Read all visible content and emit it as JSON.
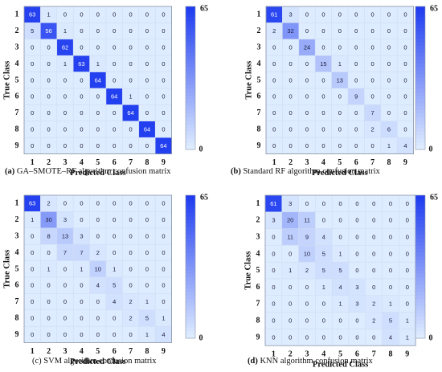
{
  "colors": {
    "min": "#deecff",
    "max": "#1f3cf0",
    "text_dark": "#1a1a3a",
    "text_light": "#ffffff"
  },
  "chart_data": [
    {
      "type": "heatmap",
      "panel_label": "(a)",
      "caption": "GA–SMOTE–RF algorithm confusion matrix",
      "xlabel": "Predicted Class",
      "ylabel": "True Class",
      "categories": [
        "1",
        "2",
        "3",
        "4",
        "5",
        "6",
        "7",
        "8",
        "9"
      ],
      "colorbar_ticks": [
        "0",
        "65"
      ],
      "vmin": 0,
      "vmax": 65,
      "values": [
        [
          63,
          1,
          0,
          0,
          0,
          0,
          0,
          0,
          0
        ],
        [
          5,
          56,
          1,
          0,
          0,
          0,
          0,
          0,
          0
        ],
        [
          0,
          0,
          62,
          0,
          0,
          0,
          0,
          0,
          0
        ],
        [
          0,
          0,
          1,
          63,
          1,
          0,
          0,
          0,
          0
        ],
        [
          0,
          0,
          0,
          0,
          64,
          0,
          0,
          0,
          0
        ],
        [
          0,
          0,
          0,
          0,
          0,
          64,
          1,
          0,
          0
        ],
        [
          0,
          0,
          0,
          0,
          0,
          0,
          64,
          0,
          0
        ],
        [
          0,
          0,
          0,
          0,
          0,
          0,
          0,
          64,
          0
        ],
        [
          0,
          0,
          0,
          0,
          0,
          0,
          0,
          0,
          64
        ]
      ]
    },
    {
      "type": "heatmap",
      "panel_label": "(b)",
      "caption": "Standard RF algorithm confusion matrix",
      "xlabel": "Predicted Class",
      "ylabel": "True Class",
      "categories": [
        "1",
        "2",
        "3",
        "4",
        "5",
        "6",
        "7",
        "8",
        "9"
      ],
      "colorbar_ticks": [
        "0",
        "65"
      ],
      "vmin": 0,
      "vmax": 65,
      "values": [
        [
          61,
          3,
          0,
          0,
          0,
          0,
          0,
          0,
          0
        ],
        [
          2,
          32,
          0,
          0,
          0,
          0,
          0,
          0,
          0
        ],
        [
          0,
          0,
          24,
          0,
          0,
          0,
          0,
          0,
          0
        ],
        [
          0,
          0,
          0,
          15,
          1,
          0,
          0,
          0,
          0
        ],
        [
          0,
          0,
          0,
          0,
          13,
          0,
          0,
          0,
          0
        ],
        [
          0,
          0,
          0,
          0,
          0,
          9,
          0,
          0,
          0
        ],
        [
          0,
          0,
          0,
          0,
          0,
          0,
          7,
          0,
          0
        ],
        [
          0,
          0,
          0,
          0,
          0,
          0,
          2,
          6,
          0
        ],
        [
          0,
          0,
          0,
          0,
          0,
          0,
          0,
          1,
          4
        ]
      ]
    },
    {
      "type": "heatmap",
      "panel_label": "(c)",
      "caption": "SVM algorithm confusion matrix",
      "xlabel": "Predicted Class",
      "ylabel": "True Class",
      "categories": [
        "1",
        "2",
        "3",
        "4",
        "5",
        "6",
        "7",
        "8",
        "9"
      ],
      "colorbar_ticks": [
        "0",
        "65"
      ],
      "vmin": 0,
      "vmax": 65,
      "values": [
        [
          63,
          2,
          0,
          0,
          0,
          0,
          0,
          0,
          0
        ],
        [
          1,
          30,
          3,
          0,
          0,
          0,
          0,
          0,
          0
        ],
        [
          0,
          8,
          13,
          3,
          0,
          0,
          0,
          0,
          0
        ],
        [
          0,
          0,
          7,
          7,
          2,
          0,
          0,
          0,
          0
        ],
        [
          0,
          1,
          0,
          1,
          10,
          1,
          0,
          0,
          0
        ],
        [
          0,
          0,
          0,
          0,
          4,
          5,
          0,
          0,
          0
        ],
        [
          0,
          0,
          0,
          0,
          0,
          4,
          2,
          1,
          0
        ],
        [
          0,
          0,
          0,
          0,
          0,
          0,
          2,
          5,
          1
        ],
        [
          0,
          0,
          0,
          0,
          0,
          0,
          0,
          1,
          4
        ]
      ]
    },
    {
      "type": "heatmap",
      "panel_label": "(d)",
      "caption": "KNN algorithm confusion matrix",
      "xlabel": "Predicted Class",
      "ylabel": "True Class",
      "categories": [
        "1",
        "2",
        "3",
        "4",
        "5",
        "6",
        "7",
        "8",
        "9"
      ],
      "colorbar_ticks": [
        "0",
        "65"
      ],
      "vmin": 0,
      "vmax": 65,
      "values": [
        [
          61,
          3,
          0,
          0,
          0,
          0,
          0,
          0,
          0
        ],
        [
          3,
          20,
          11,
          0,
          0,
          0,
          0,
          0,
          0
        ],
        [
          0,
          11,
          9,
          4,
          0,
          0,
          0,
          0,
          0
        ],
        [
          0,
          0,
          10,
          5,
          1,
          0,
          0,
          0,
          0
        ],
        [
          0,
          1,
          2,
          5,
          5,
          0,
          0,
          0,
          0
        ],
        [
          0,
          0,
          0,
          1,
          4,
          3,
          0,
          0,
          0
        ],
        [
          0,
          0,
          0,
          0,
          1,
          3,
          2,
          1,
          0
        ],
        [
          0,
          0,
          0,
          0,
          0,
          0,
          2,
          5,
          1
        ],
        [
          0,
          0,
          0,
          0,
          0,
          0,
          0,
          4,
          1
        ]
      ]
    }
  ]
}
